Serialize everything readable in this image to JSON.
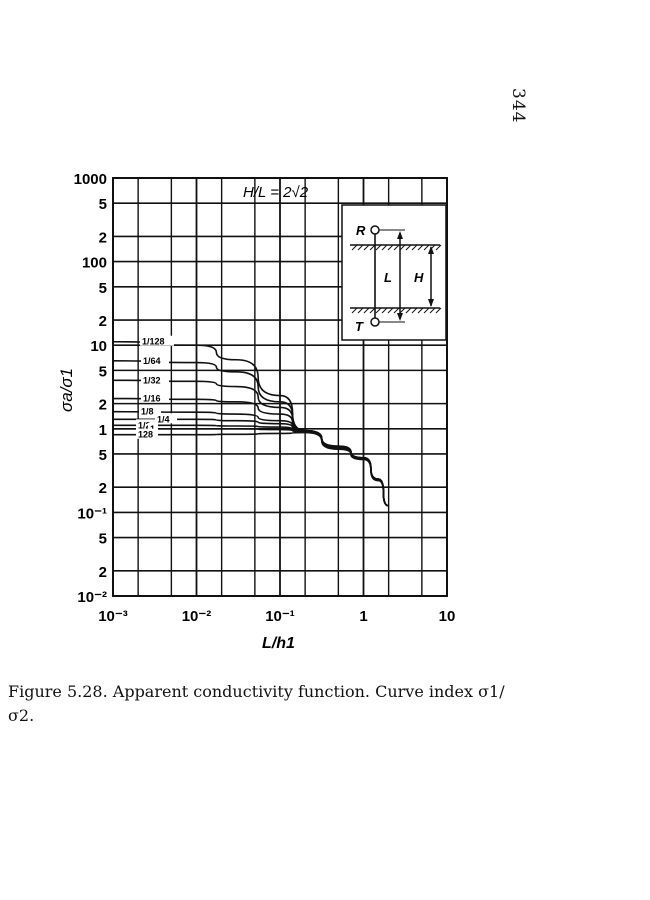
{
  "page_number": "344",
  "caption": "Figure 5.28. Apparent conductivity function. Curve index σ1/σ2.",
  "chart_data": {
    "type": "line",
    "title": "H/L = 2√2",
    "xlabel": "L/h1",
    "ylabel": "σa/σ1",
    "xscale": "log",
    "yscale": "log",
    "xlim": [
      0.001,
      10
    ],
    "ylim": [
      0.01,
      1000
    ],
    "grid": true,
    "x_ticks": [
      "10⁻³",
      "10⁻²",
      "10⁻¹",
      "1",
      "10"
    ],
    "y_ticks": [
      "1000",
      "5",
      "2",
      "100",
      "5",
      "2",
      "10",
      "5",
      "2",
      "1",
      "5",
      "2",
      "10⁻¹",
      "5",
      "2",
      "10⁻²"
    ],
    "x": [
      0.001,
      0.01,
      0.03,
      0.1,
      0.2,
      0.5,
      1,
      1.5,
      2
    ],
    "series": [
      {
        "name": "1/128",
        "values": [
          11,
          10,
          6.7,
          2.5,
          0.95,
          0.62,
          0.45,
          0.25,
          0.12
        ]
      },
      {
        "name": "1/64",
        "values": [
          6.5,
          6.2,
          4.8,
          2.1,
          0.95,
          0.62,
          0.45,
          0.25,
          0.12
        ]
      },
      {
        "name": "1/32",
        "values": [
          3.8,
          3.7,
          3.2,
          1.8,
          0.95,
          0.61,
          0.45,
          0.25,
          0.12
        ]
      },
      {
        "name": "1/16",
        "values": [
          2.3,
          2.25,
          2.1,
          1.5,
          0.95,
          0.61,
          0.45,
          0.25,
          0.12
        ]
      },
      {
        "name": "1/8",
        "values": [
          1.6,
          1.58,
          1.5,
          1.25,
          0.95,
          0.6,
          0.45,
          0.25,
          0.12
        ]
      },
      {
        "name": "1/4",
        "values": [
          1.3,
          1.3,
          1.25,
          1.15,
          0.94,
          0.6,
          0.45,
          0.25,
          0.12
        ]
      },
      {
        "name": "1/2",
        "values": [
          1.1,
          1.1,
          1.08,
          1.05,
          0.93,
          0.59,
          0.44,
          0.25,
          0.12
        ]
      },
      {
        "name": "1",
        "values": [
          1.0,
          1.0,
          1.0,
          0.98,
          0.92,
          0.58,
          0.44,
          0.25,
          0.12
        ]
      },
      {
        "name": "128",
        "values": [
          0.85,
          0.85,
          0.86,
          0.88,
          0.9,
          0.57,
          0.43,
          0.24,
          0.12
        ]
      }
    ],
    "inset": {
      "labels": [
        "R",
        "T",
        "L",
        "H"
      ]
    }
  }
}
